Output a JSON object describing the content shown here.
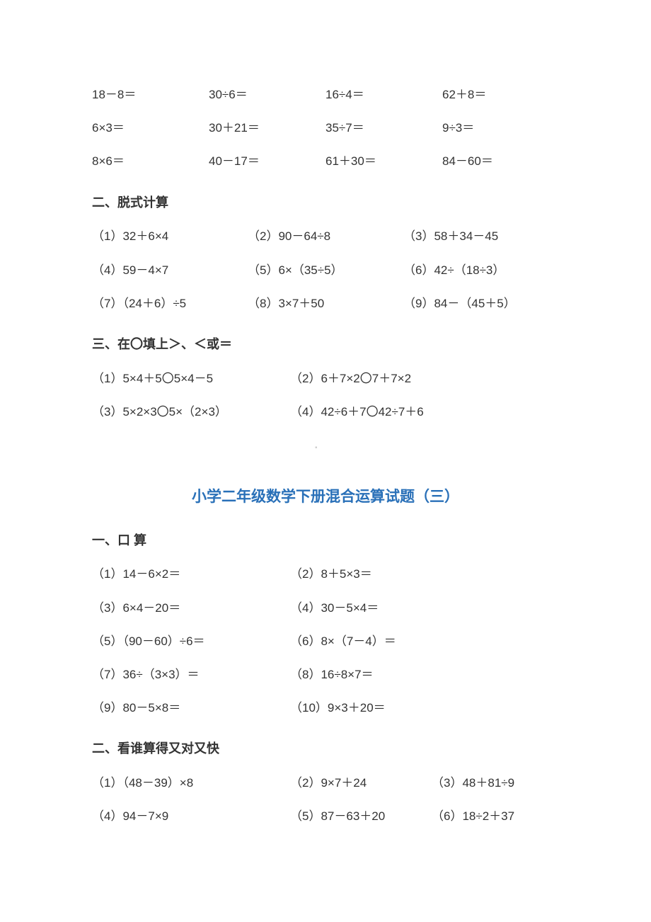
{
  "mental_top": {
    "r1": {
      "a": "18－8＝",
      "b": "30÷6＝",
      "c": "16÷4＝",
      "d": "62＋8＝"
    },
    "r2": {
      "a": "6×3＝",
      "b": "30＋21＝",
      "c": "35÷7＝",
      "d": "9÷3＝"
    },
    "r3": {
      "a": "8×6＝",
      "b": "40－17＝",
      "c": "61＋30＝",
      "d": "84－60＝"
    }
  },
  "sec2_heading": "二、脱式计算",
  "sec2": {
    "r1": {
      "a": "（1）32＋6×4",
      "b": "（2）90－64÷8",
      "c": "（3）58＋34－45"
    },
    "r2": {
      "a": "（4）59－4×7",
      "b": "（5）6×（35÷5）",
      "c": "（6）42÷（18÷3）"
    },
    "r3": {
      "a": "（7）（24＋6）÷5",
      "b": "（8）3×7＋50",
      "c": "（9）84－（45＋5）"
    }
  },
  "sec3_heading": "三、在〇填上＞、＜或＝",
  "sec3": {
    "r1": {
      "a": "（1）5×4＋5〇5×4－5",
      "b": "（2）6＋7×2〇7＋7×2"
    },
    "r2": {
      "a": "（3）5×2×3〇5×（2×3）",
      "b": "（4）42÷6＋7〇42÷7＋6"
    }
  },
  "title3": "小学二年级数学下册混合运算试题（三）",
  "sec_a_heading": "一、口  算",
  "sec_a": {
    "r1": {
      "a": "（1）14－6×2＝",
      "b": "（2）8＋5×3＝"
    },
    "r2": {
      "a": "（3）6×4－20＝",
      "b": "（4）30－5×4＝"
    },
    "r3": {
      "a": "（5）（90－60）÷6＝",
      "b": "（6）8×（7－4）＝"
    },
    "r4": {
      "a": "（7）36÷（3×3）＝",
      "b": "（8）16÷8×7＝"
    },
    "r5": {
      "a": "（9）80－5×8＝",
      "b": "（10）9×3＋20＝"
    }
  },
  "sec_b_heading": "二、看谁算得又对又快",
  "sec_b": {
    "r1": {
      "a": "（1）（48－39）×8",
      "b": "（2）9×7＋24",
      "c": "（3）48＋81÷9"
    },
    "r2": {
      "a": "（4）94－7×9",
      "b": "（5）87－63＋20",
      "c": "（6）18÷2＋37"
    }
  },
  "watermark": "▪"
}
